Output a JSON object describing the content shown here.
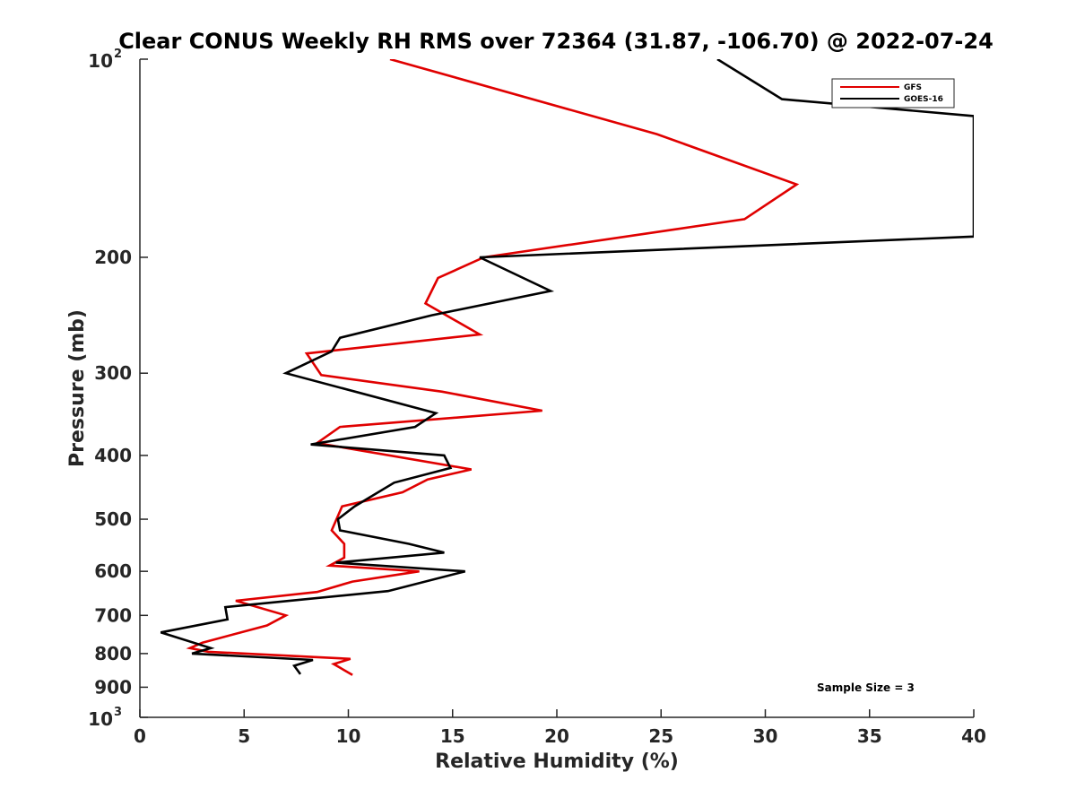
{
  "chart_data": {
    "type": "line",
    "title": "Clear CONUS Weekly RH RMS over 72364 (31.87, -106.70) @ 2022-07-24",
    "xlabel": "Relative Humidity (%)",
    "ylabel": "Pressure (mb)",
    "xlim": [
      0,
      40
    ],
    "ylim": [
      100,
      1000
    ],
    "y_scale": "log",
    "y_reversed": true,
    "x_ticks": [
      "0",
      "5",
      "10",
      "15",
      "20",
      "25",
      "30",
      "35",
      "40"
    ],
    "y_ticks": [
      {
        "value": 100,
        "label": "10",
        "sup": "2"
      },
      {
        "value": 200,
        "label": "200"
      },
      {
        "value": 300,
        "label": "300"
      },
      {
        "value": 400,
        "label": "400"
      },
      {
        "value": 500,
        "label": "500"
      },
      {
        "value": 600,
        "label": "600"
      },
      {
        "value": 700,
        "label": "700"
      },
      {
        "value": 800,
        "label": "800"
      },
      {
        "value": 900,
        "label": "900"
      },
      {
        "value": 1000,
        "label": "10",
        "sup": "3"
      }
    ],
    "legend_position": "top-right",
    "grid": false,
    "annotation": "Sample Size = 3",
    "series": [
      {
        "name": "GFS",
        "color": "#e00000",
        "points": [
          {
            "x": 12.0,
            "p": 100
          },
          {
            "x": 24.8,
            "p": 130
          },
          {
            "x": 31.5,
            "p": 155
          },
          {
            "x": 29.0,
            "p": 175
          },
          {
            "x": 16.5,
            "p": 200
          },
          {
            "x": 14.3,
            "p": 215
          },
          {
            "x": 13.7,
            "p": 235
          },
          {
            "x": 16.3,
            "p": 262
          },
          {
            "x": 8.0,
            "p": 280
          },
          {
            "x": 8.7,
            "p": 302
          },
          {
            "x": 14.5,
            "p": 320
          },
          {
            "x": 19.3,
            "p": 342
          },
          {
            "x": 9.6,
            "p": 362
          },
          {
            "x": 8.5,
            "p": 383
          },
          {
            "x": 15.9,
            "p": 420
          },
          {
            "x": 13.8,
            "p": 435
          },
          {
            "x": 12.6,
            "p": 455
          },
          {
            "x": 9.7,
            "p": 478
          },
          {
            "x": 9.2,
            "p": 520
          },
          {
            "x": 9.8,
            "p": 545
          },
          {
            "x": 9.8,
            "p": 572
          },
          {
            "x": 9.1,
            "p": 588
          },
          {
            "x": 13.4,
            "p": 600
          },
          {
            "x": 10.2,
            "p": 622
          },
          {
            "x": 8.5,
            "p": 645
          },
          {
            "x": 4.6,
            "p": 665
          },
          {
            "x": 7.0,
            "p": 700
          },
          {
            "x": 6.1,
            "p": 725
          },
          {
            "x": 3.0,
            "p": 770
          },
          {
            "x": 2.4,
            "p": 785
          },
          {
            "x": 3.3,
            "p": 795
          },
          {
            "x": 10.1,
            "p": 815
          },
          {
            "x": 9.3,
            "p": 830
          },
          {
            "x": 10.2,
            "p": 862
          }
        ]
      },
      {
        "name": "GOES-16",
        "color": "#000000",
        "points": [
          {
            "x": 27.7,
            "p": 100
          },
          {
            "x": 30.8,
            "p": 115
          },
          {
            "x": 40.0,
            "p": 122
          },
          {
            "x": 40.0,
            "p": 186
          },
          {
            "x": 16.3,
            "p": 200
          },
          {
            "x": 19.7,
            "p": 225
          },
          {
            "x": 14.0,
            "p": 245
          },
          {
            "x": 9.6,
            "p": 265
          },
          {
            "x": 9.2,
            "p": 278
          },
          {
            "x": 7.0,
            "p": 300
          },
          {
            "x": 14.2,
            "p": 345
          },
          {
            "x": 13.2,
            "p": 362
          },
          {
            "x": 8.2,
            "p": 385
          },
          {
            "x": 14.6,
            "p": 400
          },
          {
            "x": 14.9,
            "p": 418
          },
          {
            "x": 12.2,
            "p": 440
          },
          {
            "x": 10.3,
            "p": 478
          },
          {
            "x": 9.5,
            "p": 500
          },
          {
            "x": 9.6,
            "p": 520
          },
          {
            "x": 12.9,
            "p": 545
          },
          {
            "x": 14.6,
            "p": 562
          },
          {
            "x": 9.4,
            "p": 582
          },
          {
            "x": 15.6,
            "p": 600
          },
          {
            "x": 11.9,
            "p": 643
          },
          {
            "x": 4.1,
            "p": 680
          },
          {
            "x": 4.2,
            "p": 710
          },
          {
            "x": 1.0,
            "p": 743
          },
          {
            "x": 3.4,
            "p": 785
          },
          {
            "x": 2.5,
            "p": 800
          },
          {
            "x": 8.3,
            "p": 818
          },
          {
            "x": 7.4,
            "p": 835
          },
          {
            "x": 7.7,
            "p": 860
          }
        ]
      }
    ]
  }
}
